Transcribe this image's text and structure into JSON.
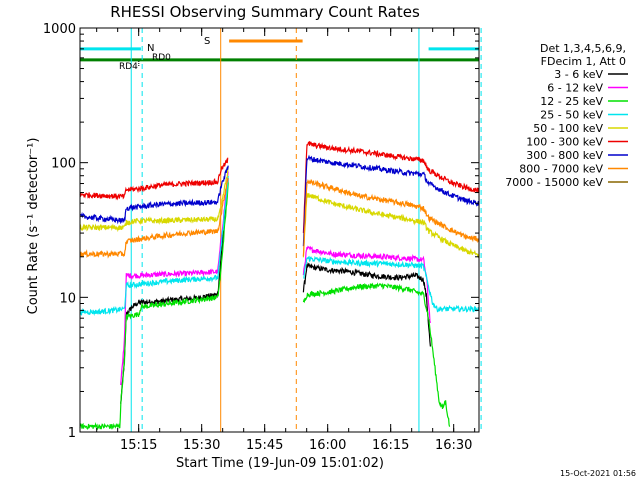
{
  "chart_data": {
    "type": "line",
    "title": "RHESSI Observing Summary Count Rates",
    "xlabel": "Start Time (19-Jun-09 15:01:02)",
    "ylabel": "Count Rate (s⁻¹ detector⁻¹)",
    "yscale": "log",
    "ylim": [
      1,
      1000
    ],
    "xlim_minutes": [
      0,
      95
    ],
    "x_ticks": [
      "15:15",
      "15:30",
      "15:45",
      "16:00",
      "16:15",
      "16:30"
    ],
    "y_ticks": [
      "1",
      "10",
      "100",
      "1000"
    ],
    "timestamp": "15-Oct-2021 01:56",
    "legend": {
      "placement": "right",
      "header": [
        "Det 1,3,4,5,6,9,",
        "FDecim 1, Att 0"
      ],
      "entries": [
        {
          "label": "3 - 6 keV",
          "color": "#000000"
        },
        {
          "label": "6 - 12 keV",
          "color": "#ff00ff"
        },
        {
          "label": "12 - 25 keV",
          "color": "#00e000"
        },
        {
          "label": "25 - 50 keV",
          "color": "#00e5ee"
        },
        {
          "label": "50 - 100 keV",
          "color": "#d8d800"
        },
        {
          "label": "100 - 300 keV",
          "color": "#ee0000"
        },
        {
          "label": "300 - 800 keV",
          "color": "#0000cc"
        },
        {
          "label": "800 - 7000 keV",
          "color": "#ff8800"
        },
        {
          "label": "7000 - 15000 keV",
          "color": "#886600"
        }
      ]
    },
    "annotations": {
      "N_label": "N",
      "S_label": "S",
      "RD0_label": "RD0",
      "RD4_label": "RD4"
    },
    "flags": {
      "night": {
        "color": "#00e5ee",
        "y": 700,
        "intervals": [
          [
            0,
            14.5
          ],
          [
            83,
            95
          ]
        ]
      },
      "saa": {
        "color": "#ff8800",
        "y": 800,
        "intervals": [
          [
            35.5,
            53
          ]
        ]
      },
      "green_bar": {
        "color": "#008000",
        "y": 580,
        "intervals": [
          [
            0,
            95
          ]
        ]
      },
      "rd_marker": {
        "color": "#000000",
        "minute": 14,
        "y": 540
      }
    },
    "vlines": [
      {
        "minute": 12.2,
        "color": "#00e5ee",
        "style": "solid"
      },
      {
        "minute": 14.8,
        "color": "#00e5ee",
        "style": "dashed"
      },
      {
        "minute": 33.5,
        "color": "#ff8800",
        "style": "solid"
      },
      {
        "minute": 51.5,
        "color": "#ff8800",
        "style": "dashed"
      },
      {
        "minute": 80.7,
        "color": "#00e5ee",
        "style": "solid"
      },
      {
        "minute": 95.5,
        "color": "#00e5ee",
        "style": "dashed"
      }
    ],
    "series": [
      {
        "name": "3 - 6 keV",
        "color": "#000000",
        "segments": [
          [
            [
              9.7,
              1.6
            ],
            [
              10.6,
              3.5
            ],
            [
              11,
              7.5
            ],
            [
              12.5,
              8.5
            ],
            [
              14,
              9.2
            ],
            [
              19,
              9.3
            ],
            [
              22,
              9.6
            ],
            [
              27,
              9.8
            ],
            [
              32.8,
              10.5
            ],
            [
              33.5,
              18
            ],
            [
              35.3,
              80
            ]
          ],
          [
            [
              53.2,
              11
            ],
            [
              54,
              17
            ],
            [
              59,
              16
            ],
            [
              64,
              15.5
            ],
            [
              70,
              14.5
            ],
            [
              76,
              14
            ],
            [
              80,
              14.5
            ],
            [
              81.8,
              13.5
            ],
            [
              82.5,
              10
            ],
            [
              83.5,
              4
            ]
          ]
        ]
      },
      {
        "name": "6 - 12 keV",
        "color": "#ff00ff",
        "segments": [
          [
            [
              9.7,
              2.2
            ],
            [
              10.6,
              5
            ],
            [
              11,
              14.5
            ],
            [
              14,
              14.5
            ],
            [
              19,
              14.8
            ],
            [
              25,
              15
            ],
            [
              32.8,
              15.5
            ],
            [
              33.5,
              25
            ],
            [
              35.3,
              85
            ]
          ],
          [
            [
              53.2,
              15
            ],
            [
              54,
              23
            ],
            [
              60,
              21
            ],
            [
              66,
              20.5
            ],
            [
              72,
              20
            ],
            [
              78,
              19.5
            ],
            [
              81.8,
              19
            ],
            [
              82.5,
              14
            ],
            [
              83.5,
              6
            ]
          ]
        ]
      },
      {
        "name": "12 - 25 keV",
        "color": "#00e000",
        "segments": [
          [
            [
              0,
              1.1
            ],
            [
              9.5,
              1.1
            ],
            [
              9.7,
              1.6
            ],
            [
              10.6,
              3.5
            ],
            [
              11,
              7.2
            ],
            [
              14,
              7.5
            ],
            [
              14.5,
              8.5
            ],
            [
              19,
              8.8
            ],
            [
              25,
              9.3
            ],
            [
              32.8,
              10
            ],
            [
              33.5,
              15
            ],
            [
              35.3,
              70
            ]
          ],
          [
            [
              53.2,
              9
            ],
            [
              54,
              10.5
            ],
            [
              60,
              11
            ],
            [
              66,
              12
            ],
            [
              72,
              12.2
            ],
            [
              78,
              11.5
            ],
            [
              81.8,
              10.5
            ],
            [
              83,
              7
            ],
            [
              84,
              4
            ],
            [
              85.5,
              1.7
            ],
            [
              86.3,
              1.5
            ],
            [
              87,
              1.7
            ],
            [
              88,
              1.1
            ]
          ]
        ]
      },
      {
        "name": "25 - 50 keV",
        "color": "#00e5ee",
        "segments": [
          [
            [
              0,
              7.8
            ],
            [
              4,
              7.8
            ],
            [
              8,
              8
            ],
            [
              10.6,
              8.2
            ],
            [
              11,
              12.2
            ],
            [
              14,
              12.5
            ],
            [
              19,
              13
            ],
            [
              25,
              13.5
            ],
            [
              32.8,
              14
            ],
            [
              33.5,
              22
            ],
            [
              35.3,
              78
            ]
          ],
          [
            [
              53.2,
              13.5
            ],
            [
              54,
              19.5
            ],
            [
              60,
              18.5
            ],
            [
              66,
              18
            ],
            [
              72,
              17.8
            ],
            [
              78,
              17.5
            ],
            [
              81.8,
              17
            ],
            [
              83,
              12
            ],
            [
              84,
              9
            ],
            [
              85,
              8.2
            ],
            [
              95,
              8.2
            ]
          ]
        ]
      },
      {
        "name": "50 - 100 keV",
        "color": "#d8d800",
        "segments": [
          [
            [
              0,
              33
            ],
            [
              10.6,
              33
            ],
            [
              11,
              36
            ],
            [
              14,
              37
            ],
            [
              19,
              37
            ],
            [
              25,
              37.5
            ],
            [
              32.8,
              38
            ],
            [
              33.5,
              45
            ],
            [
              35.3,
              90
            ]
          ],
          [
            [
              53.2,
              20
            ],
            [
              54,
              58
            ],
            [
              60,
              50
            ],
            [
              66,
              45
            ],
            [
              72,
              41
            ],
            [
              78,
              38
            ],
            [
              81.8,
              36
            ],
            [
              83,
              31
            ],
            [
              88,
              25
            ],
            [
              92,
              22
            ],
            [
              95,
              20.5
            ]
          ]
        ]
      },
      {
        "name": "100 - 300 keV",
        "color": "#ee0000",
        "segments": [
          [
            [
              0,
              58
            ],
            [
              10.6,
              56
            ],
            [
              11,
              63
            ],
            [
              14,
              64
            ],
            [
              19,
              68
            ],
            [
              25,
              70
            ],
            [
              32.8,
              72
            ],
            [
              33.5,
              88
            ],
            [
              35.3,
              105
            ]
          ],
          [
            [
              53.2,
              30
            ],
            [
              54,
              138
            ],
            [
              60,
              128
            ],
            [
              66,
              122
            ],
            [
              72,
              115
            ],
            [
              78,
              108
            ],
            [
              81.8,
              104
            ],
            [
              83,
              88
            ],
            [
              88,
              72
            ],
            [
              92,
              65
            ],
            [
              95,
              62
            ]
          ]
        ]
      },
      {
        "name": "300 - 800 keV",
        "color": "#0000cc",
        "segments": [
          [
            [
              0,
              40
            ],
            [
              10.6,
              37
            ],
            [
              11,
              46
            ],
            [
              14,
              47
            ],
            [
              19,
              49
            ],
            [
              25,
              50
            ],
            [
              32.8,
              51
            ],
            [
              33.5,
              65
            ],
            [
              35.3,
              95
            ]
          ],
          [
            [
              53.2,
              25
            ],
            [
              54,
              108
            ],
            [
              60,
              100
            ],
            [
              66,
              95
            ],
            [
              72,
              89
            ],
            [
              78,
              84
            ],
            [
              81.8,
              82
            ],
            [
              83,
              70
            ],
            [
              88,
              58
            ],
            [
              92,
              52
            ],
            [
              95,
              50
            ]
          ]
        ]
      },
      {
        "name": "800 - 7000 keV",
        "color": "#ff8800",
        "segments": [
          [
            [
              0,
              21
            ],
            [
              10.6,
              21
            ],
            [
              11,
              26
            ],
            [
              14,
              27
            ],
            [
              19,
              28.5
            ],
            [
              25,
              30
            ],
            [
              32.8,
              31
            ],
            [
              33.5,
              40
            ],
            [
              35.3,
              80
            ]
          ],
          [
            [
              53.2,
              20
            ],
            [
              54,
              73
            ],
            [
              60,
              65
            ],
            [
              66,
              57
            ],
            [
              72,
              53
            ],
            [
              78,
              49
            ],
            [
              81.8,
              46
            ],
            [
              83,
              39
            ],
            [
              88,
              32
            ],
            [
              92,
              28
            ],
            [
              95,
              27
            ]
          ]
        ]
      },
      {
        "name": "7000 - 15000 keV",
        "color": "#886600",
        "segments": []
      }
    ]
  }
}
